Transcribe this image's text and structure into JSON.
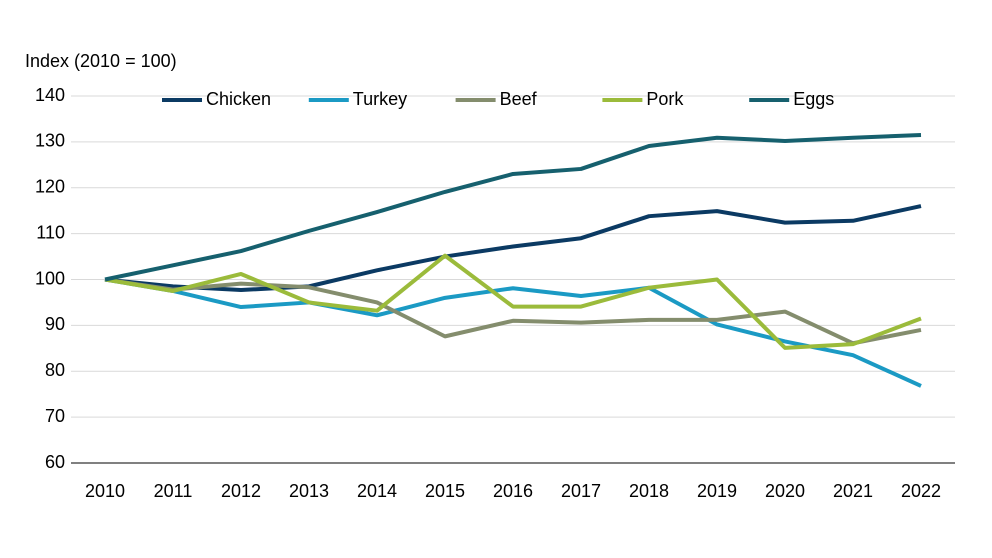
{
  "chart_data": {
    "type": "line",
    "y_label": "Index (2010 = 100)",
    "categories": [
      "2010",
      "2011",
      "2012",
      "2013",
      "2014",
      "2015",
      "2016",
      "2017",
      "2018",
      "2019",
      "2020",
      "2021",
      "2022"
    ],
    "series": [
      {
        "name": "Chicken",
        "color": "#0b3a63",
        "values": [
          100,
          98.5,
          97.7,
          98.5,
          102,
          105,
          107.2,
          109,
          113.8,
          114.9,
          112.4,
          112.8,
          116
        ]
      },
      {
        "name": "Turkey",
        "color": "#1b9ac4",
        "values": [
          100,
          97.5,
          94,
          95,
          92.2,
          96,
          98.1,
          96.4,
          98.2,
          90.2,
          86.5,
          83.5,
          76.8
        ]
      },
      {
        "name": "Beef",
        "color": "#848d6d",
        "values": [
          100,
          97.8,
          99.1,
          98.3,
          95,
          87.6,
          91,
          90.6,
          91.2,
          91.2,
          93,
          86.1,
          89
        ]
      },
      {
        "name": "Pork",
        "color": "#9bbb3b",
        "values": [
          100,
          97.5,
          101.2,
          95,
          93.2,
          105.2,
          94.1,
          94.1,
          98.2,
          100,
          85.1,
          85.9,
          91.5
        ]
      },
      {
        "name": "Eggs",
        "color": "#16606e",
        "values": [
          100,
          103.1,
          106.2,
          110.6,
          114.7,
          119.1,
          123,
          124.1,
          129.1,
          130.9,
          130.2,
          130.9,
          131.5
        ]
      }
    ],
    "ylim": [
      60,
      140
    ],
    "yticks": [
      60,
      70,
      80,
      90,
      100,
      110,
      120,
      130,
      140
    ],
    "grid": true,
    "legend": "top"
  }
}
